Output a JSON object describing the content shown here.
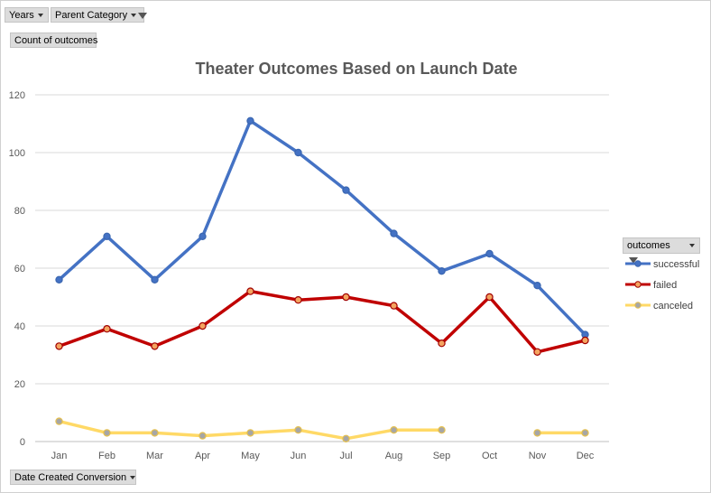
{
  "pivot": {
    "years_label": "Years",
    "parent_category_label": "Parent Category",
    "values_label": "Count of outcomes",
    "axis_field_label": "Date Created Conversion",
    "legend_field_label": "outcomes"
  },
  "chart_data": {
    "type": "line",
    "title": "Theater Outcomes Based on Launch Date",
    "categories": [
      "Jan",
      "Feb",
      "Mar",
      "Apr",
      "May",
      "Jun",
      "Jul",
      "Aug",
      "Sep",
      "Oct",
      "Nov",
      "Dec"
    ],
    "ylim": [
      0,
      120
    ],
    "yticks": [
      0,
      20,
      40,
      60,
      80,
      100,
      120
    ],
    "grid": true,
    "legend_position": "right",
    "series": [
      {
        "name": "successful",
        "color": "#4472C4",
        "values": [
          56,
          71,
          56,
          71,
          111,
          100,
          87,
          72,
          59,
          65,
          54,
          37
        ]
      },
      {
        "name": "failed",
        "color": "#C00000",
        "values": [
          33,
          39,
          33,
          40,
          52,
          49,
          50,
          47,
          34,
          50,
          31,
          35
        ]
      },
      {
        "name": "canceled",
        "color": "#FFD966",
        "values": [
          7,
          3,
          3,
          2,
          3,
          4,
          1,
          4,
          4,
          null,
          3,
          3
        ]
      }
    ]
  }
}
